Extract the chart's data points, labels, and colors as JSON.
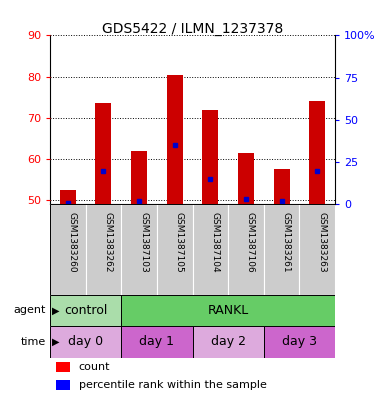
{
  "title": "GDS5422 / ILMN_1237378",
  "samples": [
    "GSM1383260",
    "GSM1383262",
    "GSM1387103",
    "GSM1387105",
    "GSM1387104",
    "GSM1387106",
    "GSM1383261",
    "GSM1383263"
  ],
  "counts": [
    52.5,
    73.5,
    62.0,
    80.5,
    72.0,
    61.5,
    57.5,
    74.0
  ],
  "percentiles": [
    1,
    20,
    2,
    35,
    15,
    3,
    2,
    20
  ],
  "ylim_left": [
    49,
    90
  ],
  "yticks_left": [
    50,
    60,
    70,
    80,
    90
  ],
  "ylim_right": [
    0,
    100
  ],
  "yticks_right": [
    0,
    25,
    50,
    75,
    100
  ],
  "bar_color": "#cc0000",
  "percentile_color": "#0000cc",
  "bar_width": 0.45,
  "agent_labels": [
    {
      "label": "control",
      "span": [
        0,
        2
      ],
      "color": "#aaddaa"
    },
    {
      "label": "RANKL",
      "span": [
        2,
        8
      ],
      "color": "#66cc66"
    }
  ],
  "time_colors": [
    "#ddaadd",
    "#cc66cc",
    "#ddaadd",
    "#cc66cc"
  ],
  "time_labels": [
    {
      "label": "day 0",
      "span": [
        0,
        2
      ]
    },
    {
      "label": "day 1",
      "span": [
        2,
        4
      ]
    },
    {
      "label": "day 2",
      "span": [
        4,
        6
      ]
    },
    {
      "label": "day 3",
      "span": [
        6,
        8
      ]
    }
  ],
  "legend_count_label": "count",
  "legend_pct_label": "percentile rank within the sample",
  "agent_row_label": "agent",
  "time_row_label": "time",
  "xlabel_bg_color": "#cccccc",
  "plot_bg_color": "#ffffff"
}
